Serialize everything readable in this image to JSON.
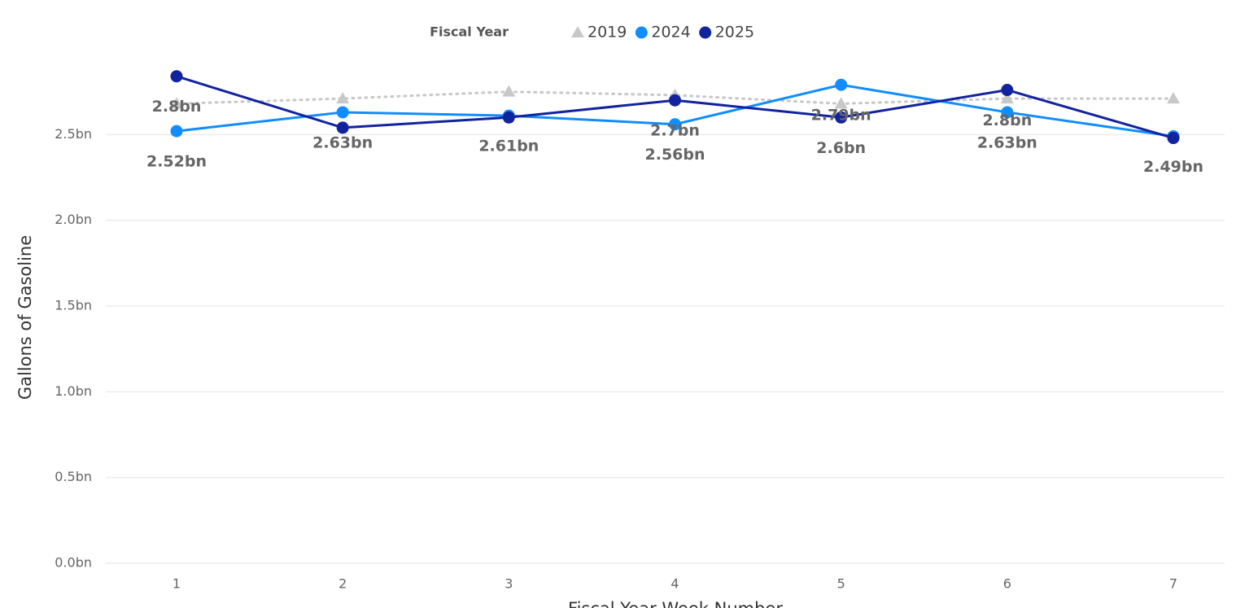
{
  "chart_data": {
    "type": "line",
    "legend_title": "Fiscal Year",
    "x_label": "Fiscal Year Week Number",
    "y_label": "Gallons of Gasoline",
    "categories": [
      "1",
      "2",
      "3",
      "4",
      "5",
      "6",
      "7"
    ],
    "ylim": [
      0,
      3.0
    ],
    "yticks": [
      {
        "value": 0,
        "label": "0.0bn"
      },
      {
        "value": 0.5,
        "label": "0.5bn"
      },
      {
        "value": 1.0,
        "label": "1.0bn"
      },
      {
        "value": 1.5,
        "label": "1.5bn"
      },
      {
        "value": 2.0,
        "label": "2.0bn"
      },
      {
        "value": 2.5,
        "label": "2.5bn"
      }
    ],
    "grid": true,
    "legend_position": "top",
    "series": [
      {
        "name": "2019",
        "color": "#c8c8c8",
        "marker": "triangle",
        "line_style": "dotted",
        "values": [
          2.68,
          2.71,
          2.75,
          2.73,
          2.68,
          2.71,
          2.71
        ]
      },
      {
        "name": "2024",
        "color": "#118dff",
        "marker": "circle",
        "line_style": "solid",
        "values": [
          2.52,
          2.63,
          2.61,
          2.56,
          2.79,
          2.63,
          2.49
        ],
        "value_labels": [
          "2.52bn",
          "2.63bn",
          "2.61bn",
          "2.56bn",
          "2.79bn",
          "2.63bn",
          "2.49bn"
        ]
      },
      {
        "name": "2025",
        "color": "#12239e",
        "marker": "circle",
        "line_style": "solid",
        "values": [
          2.84,
          2.54,
          2.6,
          2.7,
          2.6,
          2.76,
          2.48
        ],
        "value_labels": [
          "2.8bn",
          null,
          null,
          "2.7bn",
          "2.6bn",
          "2.8bn",
          null
        ]
      }
    ]
  }
}
